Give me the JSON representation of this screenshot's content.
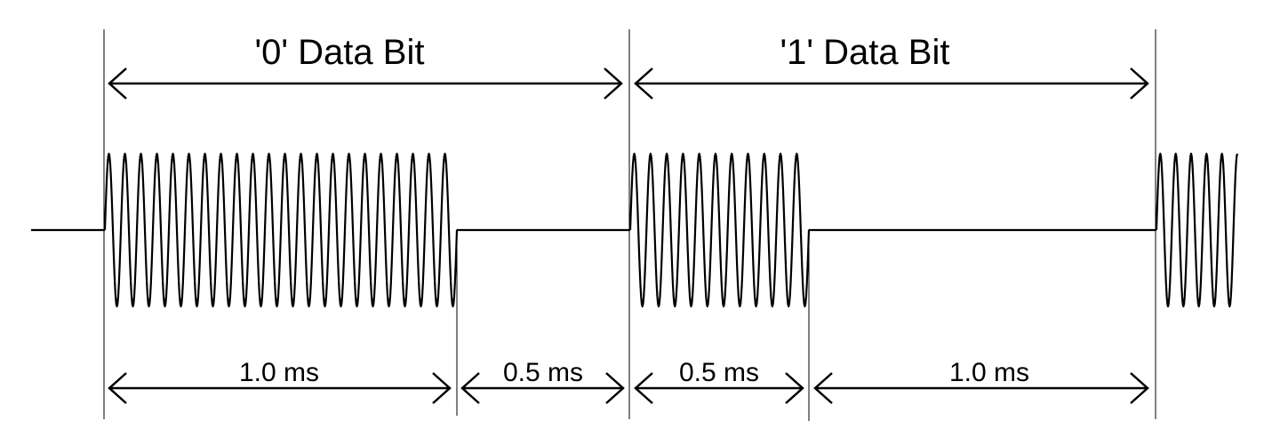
{
  "bits": [
    {
      "label": "'0' Data Bit"
    },
    {
      "label": "'1' Data Bit"
    }
  ],
  "durations": [
    {
      "label": "1.0 ms"
    },
    {
      "label": "0.5 ms"
    },
    {
      "label": "0.5 ms"
    },
    {
      "label": "1.0 ms"
    }
  ],
  "colors": {
    "ink": "#000000",
    "background": "#ffffff"
  }
}
